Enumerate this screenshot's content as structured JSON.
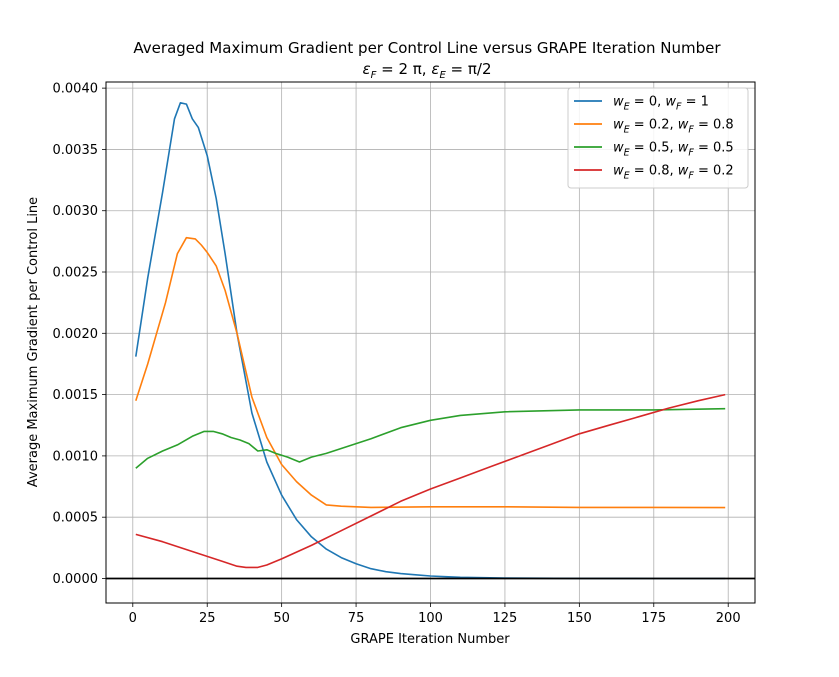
{
  "chart_data": {
    "type": "line",
    "title": "Averaged Maximum Gradient per Control Line versus GRAPE Iteration Number",
    "subtitle": "εF = 2 π, εE = π/2",
    "xlabel": "GRAPE Iteration Number",
    "ylabel": "Average Maximum Gradient per Control Line",
    "xlim": [
      -9,
      209
    ],
    "ylim": [
      -0.0002,
      0.00405
    ],
    "xticks": [
      0,
      25,
      50,
      75,
      100,
      125,
      150,
      175,
      200
    ],
    "xtick_labels": [
      "0",
      "25",
      "50",
      "75",
      "100",
      "125",
      "150",
      "175",
      "200"
    ],
    "yticks": [
      0,
      0.0005,
      0.001,
      0.0015,
      0.002,
      0.0025,
      0.003,
      0.0035,
      0.004
    ],
    "ytick_labels": [
      "0.0000",
      "0.0005",
      "0.0010",
      "0.0015",
      "0.0020",
      "0.0025",
      "0.0030",
      "0.0035",
      "0.0040"
    ],
    "grid": true,
    "hline": 0,
    "legend_position": "top-right",
    "series": [
      {
        "name": "wE = 0, wF = 1",
        "color": "#1f77b4",
        "x": [
          1,
          5,
          10,
          14,
          16,
          18,
          20,
          22,
          25,
          28,
          31,
          35,
          40,
          45,
          50,
          55,
          60,
          65,
          70,
          75,
          80,
          85,
          90,
          95,
          100,
          110,
          125,
          150,
          175,
          199
        ],
        "y": [
          0.00181,
          0.00245,
          0.00315,
          0.00375,
          0.00388,
          0.00387,
          0.00375,
          0.00368,
          0.00345,
          0.0031,
          0.00265,
          0.002,
          0.00135,
          0.00095,
          0.00068,
          0.00048,
          0.00034,
          0.00024,
          0.00017,
          0.00012,
          8e-05,
          5.5e-05,
          4e-05,
          3e-05,
          2e-05,
          1e-05,
          4e-06,
          1e-06,
          0.0,
          0.0
        ]
      },
      {
        "name": "wE = 0.2, wF = 0.8",
        "color": "#ff7f0e",
        "x": [
          1,
          5,
          11,
          15,
          18,
          21,
          23,
          25,
          28,
          31,
          35,
          40,
          45,
          50,
          55,
          60,
          65,
          70,
          80,
          100,
          125,
          150,
          175,
          199
        ],
        "y": [
          0.00145,
          0.00175,
          0.00225,
          0.00265,
          0.00278,
          0.00277,
          0.00272,
          0.00266,
          0.00255,
          0.00235,
          0.002,
          0.00148,
          0.00115,
          0.00093,
          0.00079,
          0.00068,
          0.0006,
          0.00059,
          0.00058,
          0.000585,
          0.000585,
          0.00058,
          0.00058,
          0.000578
        ]
      },
      {
        "name": "wE = 0.5, wF = 0.5",
        "color": "#2ca02c",
        "x": [
          1,
          5,
          10,
          15,
          20,
          24,
          27,
          30,
          33,
          36,
          39,
          42,
          45,
          48,
          52,
          56,
          60,
          65,
          70,
          75,
          80,
          90,
          100,
          110,
          125,
          150,
          175,
          199
        ],
        "y": [
          0.0009,
          0.00098,
          0.00104,
          0.00109,
          0.00116,
          0.0012,
          0.0012,
          0.00118,
          0.00115,
          0.00113,
          0.0011,
          0.00104,
          0.00105,
          0.00102,
          0.00099,
          0.00095,
          0.00099,
          0.00102,
          0.00106,
          0.0011,
          0.00114,
          0.00123,
          0.00129,
          0.00133,
          0.00136,
          0.001375,
          0.001375,
          0.001385
        ]
      },
      {
        "name": "wE = 0.8, wF = 0.2",
        "color": "#d62728",
        "x": [
          1,
          10,
          20,
          30,
          35,
          38,
          42,
          45,
          50,
          60,
          70,
          80,
          90,
          100,
          110,
          120,
          130,
          140,
          150,
          160,
          170,
          180,
          190,
          199
        ],
        "y": [
          0.00036,
          0.0003,
          0.00022,
          0.00014,
          0.0001,
          9e-05,
          9e-05,
          0.00011,
          0.00016,
          0.00027,
          0.00039,
          0.00051,
          0.00063,
          0.00073,
          0.00082,
          0.00091,
          0.001,
          0.00109,
          0.00118,
          0.00125,
          0.00132,
          0.00139,
          0.00145,
          0.0015
        ]
      }
    ]
  }
}
